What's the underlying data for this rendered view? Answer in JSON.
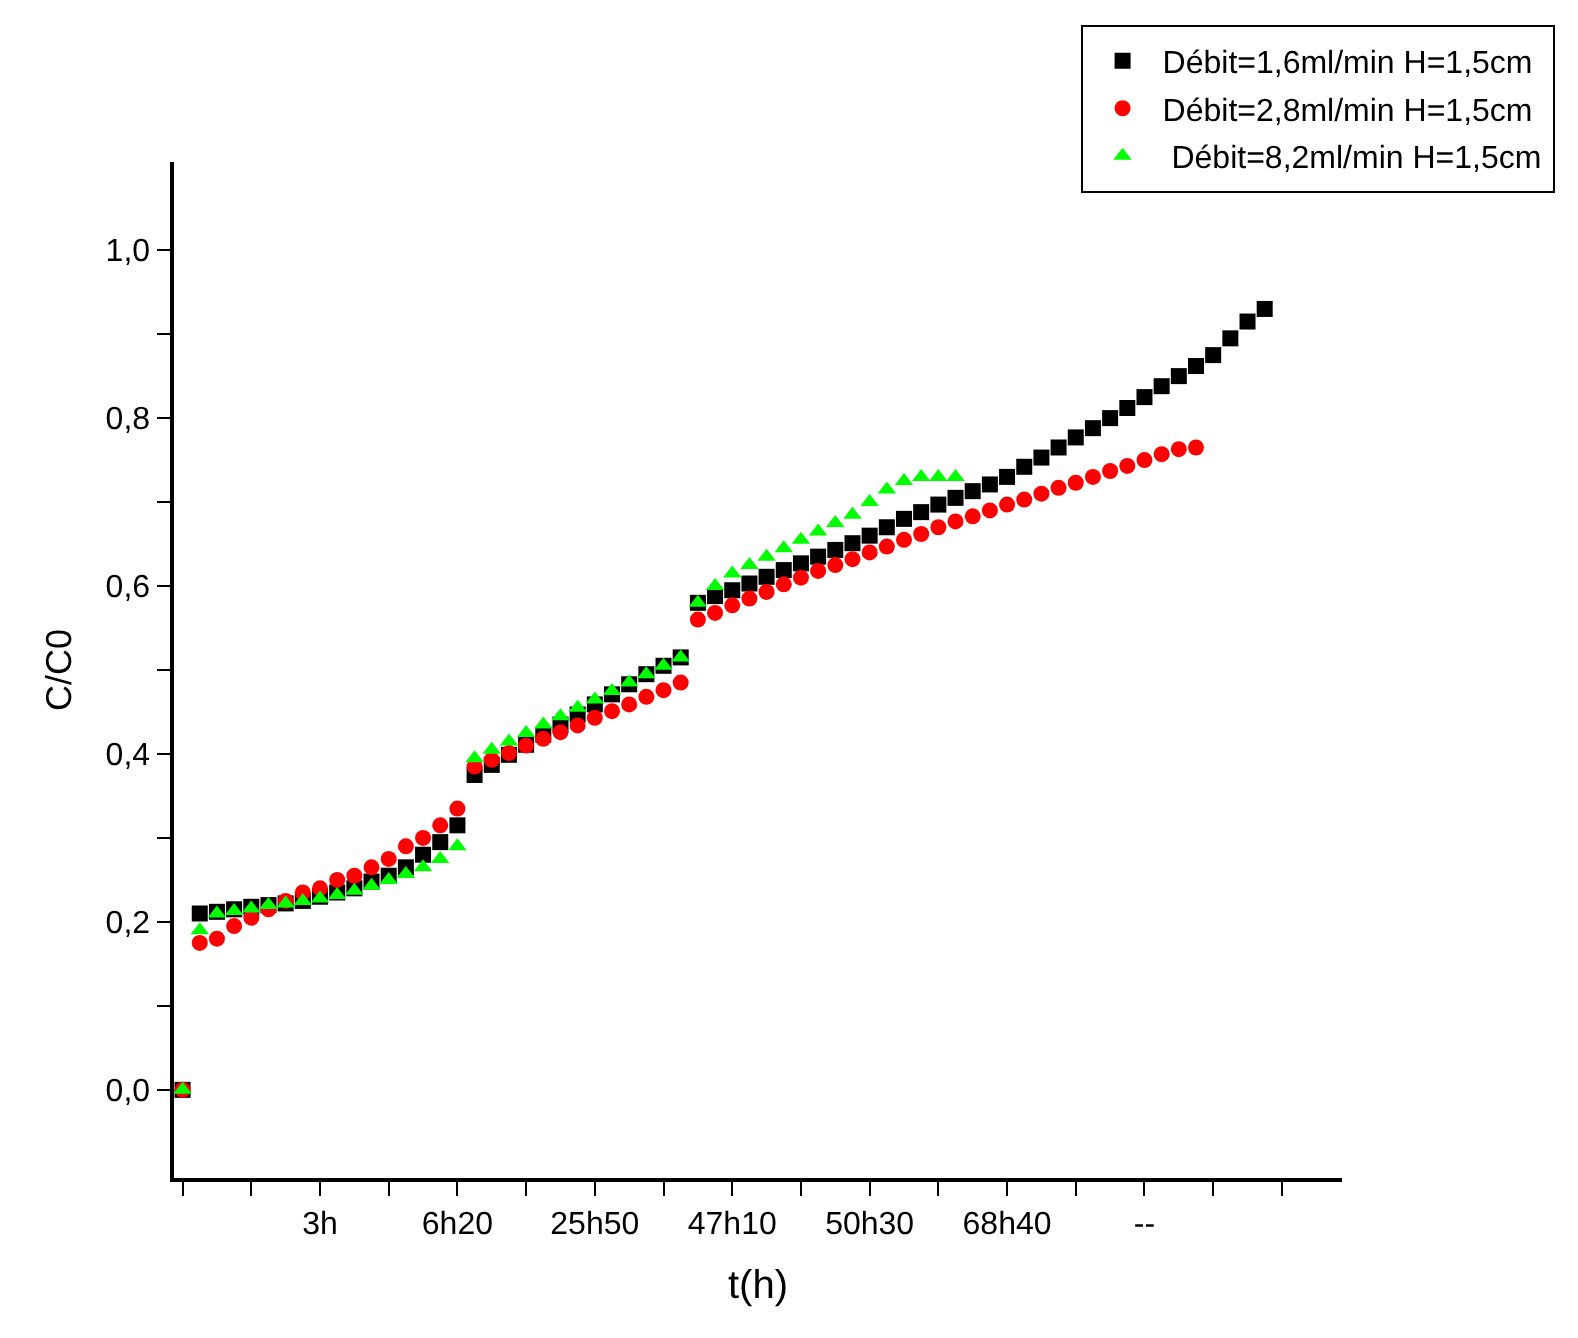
{
  "chart_data": {
    "type": "scatter",
    "xlabel": "t(h)",
    "ylabel": "C/C0",
    "categories": [
      null,
      null,
      null,
      null,
      null,
      null,
      null,
      null,
      "3h",
      null,
      null,
      null,
      null,
      null,
      null,
      null,
      "6h20",
      null,
      null,
      null,
      null,
      null,
      null,
      null,
      "25h50",
      null,
      null,
      null,
      null,
      null,
      null,
      null,
      "47h10",
      null,
      null,
      null,
      null,
      null,
      null,
      null,
      "50h30",
      null,
      null,
      null,
      null,
      null,
      null,
      null,
      "68h40",
      null,
      null,
      null,
      null,
      null,
      null,
      null,
      "--",
      null,
      null,
      null,
      null,
      null,
      null,
      null,
      null,
      null,
      null,
      null
    ],
    "series": [
      {
        "name": "Débit=1,6ml/min H=1,5cm",
        "color": "#000000",
        "marker": "square",
        "values": [
          0.0,
          0.21,
          0.212,
          0.215,
          0.218,
          0.22,
          0.222,
          0.225,
          0.23,
          0.235,
          0.24,
          0.248,
          0.255,
          0.265,
          0.28,
          0.295,
          0.315,
          0.375,
          0.387,
          0.399,
          0.411,
          0.423,
          0.435,
          0.447,
          0.459,
          0.471,
          0.483,
          0.495,
          0.505,
          0.515,
          0.58,
          0.588,
          0.595,
          0.603,
          0.611,
          0.619,
          0.627,
          0.635,
          0.643,
          0.651,
          0.66,
          0.67,
          0.68,
          0.688,
          0.697,
          0.705,
          0.713,
          0.721,
          0.73,
          0.742,
          0.753,
          0.765,
          0.777,
          0.788,
          0.8,
          0.812,
          0.825,
          0.838,
          0.85,
          0.862,
          0.875,
          0.895,
          0.915,
          0.93,
          null,
          null,
          null,
          null
        ]
      },
      {
        "name": "Débit=2,8ml/min H=1,5cm",
        "color": "#ff0000",
        "marker": "circle",
        "values": [
          0.0,
          0.175,
          0.18,
          0.195,
          0.205,
          0.215,
          0.225,
          0.235,
          0.24,
          0.25,
          0.255,
          0.265,
          0.275,
          0.29,
          0.3,
          0.315,
          0.335,
          0.385,
          0.393,
          0.401,
          0.41,
          0.418,
          0.426,
          0.434,
          0.443,
          0.451,
          0.459,
          0.468,
          0.476,
          0.485,
          0.56,
          0.568,
          0.577,
          0.585,
          0.593,
          0.602,
          0.61,
          0.618,
          0.625,
          0.632,
          0.64,
          0.647,
          0.655,
          0.662,
          0.67,
          0.677,
          0.683,
          0.69,
          0.697,
          0.703,
          0.71,
          0.717,
          0.723,
          0.73,
          0.737,
          0.743,
          0.75,
          0.757,
          0.763,
          0.765,
          null,
          null,
          null,
          null,
          null,
          null,
          null,
          null
        ]
      },
      {
        "name": " Débit=8,2ml/min H=1,5cm",
        "color": "#00ff00",
        "marker": "triangle",
        "values": [
          0.0,
          0.19,
          0.21,
          0.213,
          0.216,
          0.22,
          0.222,
          0.225,
          0.228,
          0.232,
          0.237,
          0.243,
          0.25,
          0.257,
          0.265,
          0.275,
          0.29,
          0.395,
          0.405,
          0.415,
          0.425,
          0.435,
          0.445,
          0.455,
          0.465,
          0.475,
          0.485,
          0.495,
          0.505,
          0.515,
          0.58,
          0.6,
          0.615,
          0.625,
          0.635,
          0.645,
          0.655,
          0.665,
          0.675,
          0.685,
          0.7,
          0.715,
          0.725,
          0.73,
          0.73,
          0.73,
          null,
          null,
          null,
          null,
          null,
          null,
          null,
          null,
          null,
          null,
          null,
          null,
          null,
          null,
          null,
          null,
          null,
          null,
          null,
          null,
          null,
          null
        ]
      }
    ],
    "ylim": [
      -0.105,
      1.105
    ],
    "yticks": [
      {
        "value": 0,
        "label": "0,0"
      },
      {
        "value": 0.1,
        "label": null
      },
      {
        "value": 0.2,
        "label": "0,2"
      },
      {
        "value": 0.3,
        "label": null
      },
      {
        "value": 0.4,
        "label": "0,4"
      },
      {
        "value": 0.5,
        "label": null
      },
      {
        "value": 0.6,
        "label": "0,6"
      },
      {
        "value": 0.7,
        "label": null
      },
      {
        "value": 0.8,
        "label": "0,8"
      },
      {
        "value": 0.9,
        "label": null
      },
      {
        "value": 1.0,
        "label": "1,0"
      }
    ],
    "legend": "top right"
  }
}
